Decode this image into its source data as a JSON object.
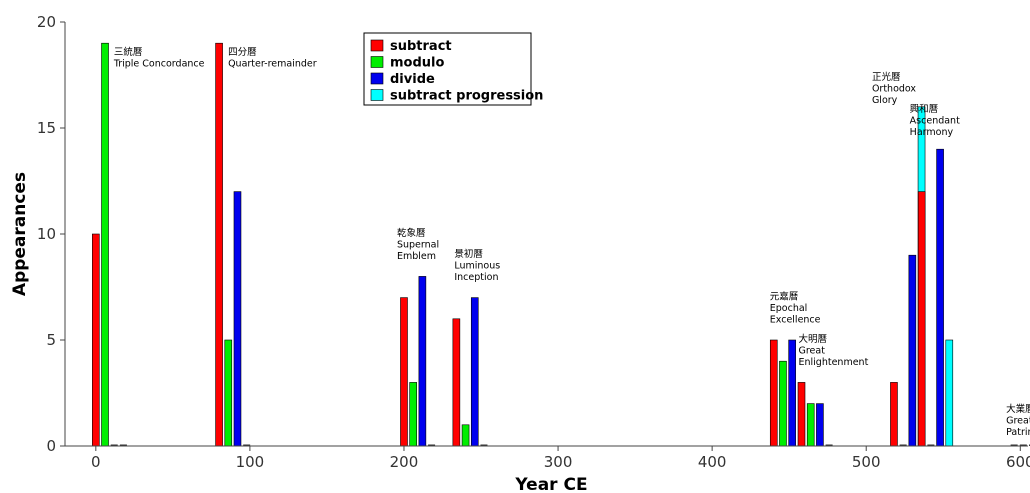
{
  "chart_data": {
    "type": "bar",
    "xlabel": "Year CE",
    "ylabel": "Appearances",
    "xlim": [
      -20,
      605
    ],
    "ylim": [
      0,
      20
    ],
    "xticks": [
      0,
      100,
      200,
      300,
      400,
      500,
      600
    ],
    "yticks": [
      0,
      5,
      10,
      15,
      20
    ],
    "grid": false,
    "legend_position": "top-center",
    "series": [
      {
        "name": "subtract",
        "color": "#ff0000"
      },
      {
        "name": "modulo",
        "color": "#00ee00"
      },
      {
        "name": "divide",
        "color": "#0000ee"
      },
      {
        "name": "subtract progression",
        "color": "#00ffff"
      }
    ],
    "groups": [
      {
        "x": 0,
        "values": [
          10,
          19,
          0,
          0
        ],
        "label_zh": "三統曆",
        "label_en": [
          "Triple Concordance"
        ]
      },
      {
        "x": 80,
        "values": [
          19,
          5,
          12,
          0
        ],
        "label_zh": "四分曆",
        "label_en": [
          "Quarter-remainder"
        ]
      },
      {
        "x": 200,
        "values": [
          7,
          3,
          8,
          0
        ],
        "label_zh": "乾象曆",
        "label_en": [
          "Supernal",
          "Emblem"
        ]
      },
      {
        "x": 234,
        "values": [
          6,
          1,
          7,
          0
        ],
        "label_zh": "景初曆",
        "label_en": [
          "Luminous",
          "Inception"
        ]
      },
      {
        "x": 440,
        "values": [
          5,
          4,
          5,
          0
        ],
        "label_zh": "元嘉曆",
        "label_en": [
          "Epochal",
          "Excellence"
        ]
      },
      {
        "x": 458,
        "values": [
          3,
          2,
          2,
          0
        ],
        "label_zh": "大明曆",
        "label_en": [
          "Great",
          "Enlightenment"
        ]
      },
      {
        "x": 518,
        "values": [
          3,
          0,
          9,
          16
        ],
        "label_zh": "正光曆",
        "label_en": [
          "Orthodox",
          "Glory"
        ]
      },
      {
        "x": 536,
        "values": [
          12,
          0,
          14,
          5
        ],
        "label_zh": "興和曆",
        "label_en": [
          "Ascendant",
          "Harmony"
        ]
      },
      {
        "x": 596,
        "values": [
          0,
          0,
          0,
          0
        ],
        "label_zh": "大業曆",
        "label_en": [
          "Great",
          "Patrimon"
        ]
      }
    ]
  }
}
